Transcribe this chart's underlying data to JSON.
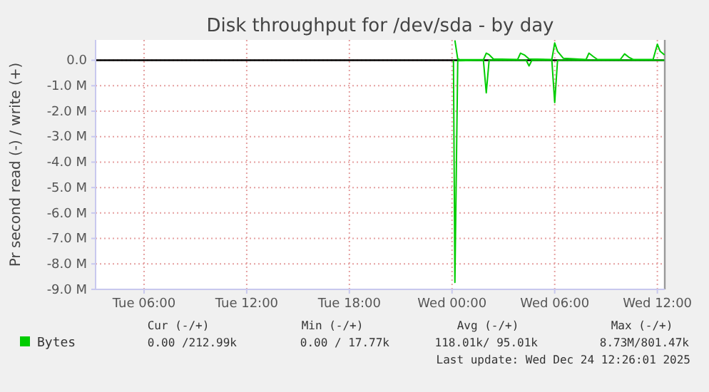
{
  "chart_data": {
    "type": "line",
    "title": "Disk throughput for /dev/sda - by day",
    "ylabel": "Pr second read (-) / write (+)",
    "xlim": [
      "2025-12-23T03:10",
      "2025-12-24T12:26"
    ],
    "xticks": [
      {
        "value": "2025-12-23T06:00",
        "label": "Tue 06:00"
      },
      {
        "value": "2025-12-23T12:00",
        "label": "Tue 12:00"
      },
      {
        "value": "2025-12-23T18:00",
        "label": "Tue 18:00"
      },
      {
        "value": "2025-12-24T00:00",
        "label": "Wed 00:00"
      },
      {
        "value": "2025-12-24T06:00",
        "label": "Wed 06:00"
      },
      {
        "value": "2025-12-24T12:00",
        "label": "Wed 12:00"
      }
    ],
    "ylim": [
      -9.0,
      0.8
    ],
    "yticks": [
      {
        "value": 0,
        "label": "0.0"
      },
      {
        "value": -1,
        "label": "-1.0 M"
      },
      {
        "value": -2,
        "label": "-2.0 M"
      },
      {
        "value": -3,
        "label": "-3.0 M"
      },
      {
        "value": -4,
        "label": "-4.0 M"
      },
      {
        "value": -5,
        "label": "-5.0 M"
      },
      {
        "value": -6,
        "label": "-6.0 M"
      },
      {
        "value": -7,
        "label": "-7.0 M"
      },
      {
        "value": -8,
        "label": "-8.0 M"
      },
      {
        "value": -9,
        "label": "-9.0 M"
      }
    ],
    "grid": true,
    "legend": "bottom",
    "ref_lines": [
      {
        "axis": "y",
        "value": 0,
        "color": "#000000"
      },
      {
        "axis": "x",
        "value": "2025-12-24T12:26",
        "color": "#999999"
      }
    ],
    "series": [
      {
        "name": "Bytes",
        "color": "#00cc00",
        "x": [
          "2025-12-24T00:05",
          "2025-12-24T00:10",
          "2025-12-24T00:20",
          "2025-12-24T01:50",
          "2025-12-24T02:00",
          "2025-12-24T02:10",
          "2025-12-24T04:20",
          "2025-12-24T04:30",
          "2025-12-24T04:40",
          "2025-12-24T05:50",
          "2025-12-24T06:00",
          "2025-12-24T06:10",
          "2025-12-24T12:25"
        ],
        "values": [
          0,
          -8.73,
          -0.02,
          0,
          -1.28,
          0,
          0,
          -0.22,
          0,
          0,
          -1.66,
          0,
          0
        ]
      },
      {
        "color": "#00cc00",
        "x": [
          "2025-12-24T00:10",
          "2025-12-24T00:20",
          "2025-12-24T00:30",
          "2025-12-24T01:50",
          "2025-12-24T02:00",
          "2025-12-24T02:10",
          "2025-12-24T02:25",
          "2025-12-24T03:50",
          "2025-12-24T04:00",
          "2025-12-24T04:15",
          "2025-12-24T04:30",
          "2025-12-24T05:50",
          "2025-12-24T06:00",
          "2025-12-24T06:10",
          "2025-12-24T06:30",
          "2025-12-24T07:50",
          "2025-12-24T08:00",
          "2025-12-24T08:15",
          "2025-12-24T08:30",
          "2025-12-24T09:50",
          "2025-12-24T10:05",
          "2025-12-24T10:20",
          "2025-12-24T10:35",
          "2025-12-24T11:45",
          "2025-12-24T12:00",
          "2025-12-24T12:10",
          "2025-12-24T12:25"
        ],
        "values": [
          0.78,
          0.05,
          0.02,
          0.02,
          0.28,
          0.22,
          0.05,
          0.03,
          0.28,
          0.2,
          0.05,
          0.03,
          0.68,
          0.35,
          0.08,
          0.03,
          0.28,
          0.15,
          0.03,
          0.03,
          0.25,
          0.12,
          0.03,
          0.03,
          0.63,
          0.35,
          0.21
        ]
      }
    ],
    "annotations": [
      "Cur (-/+)",
      "Min (-/+)",
      "Avg (-/+)",
      "Max (-/+)",
      "0.00 /212.99k",
      "0.00 / 17.77k",
      "118.01k/ 95.01k",
      "8.73M/801.47k",
      "Last update: Wed Dec 24 12:26:01 2025"
    ]
  }
}
